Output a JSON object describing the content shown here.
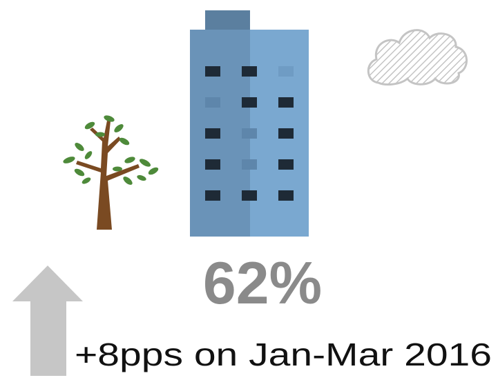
{
  "infographic": {
    "stat": "62%",
    "caption": "+8pps on Jan-Mar 2016"
  }
}
